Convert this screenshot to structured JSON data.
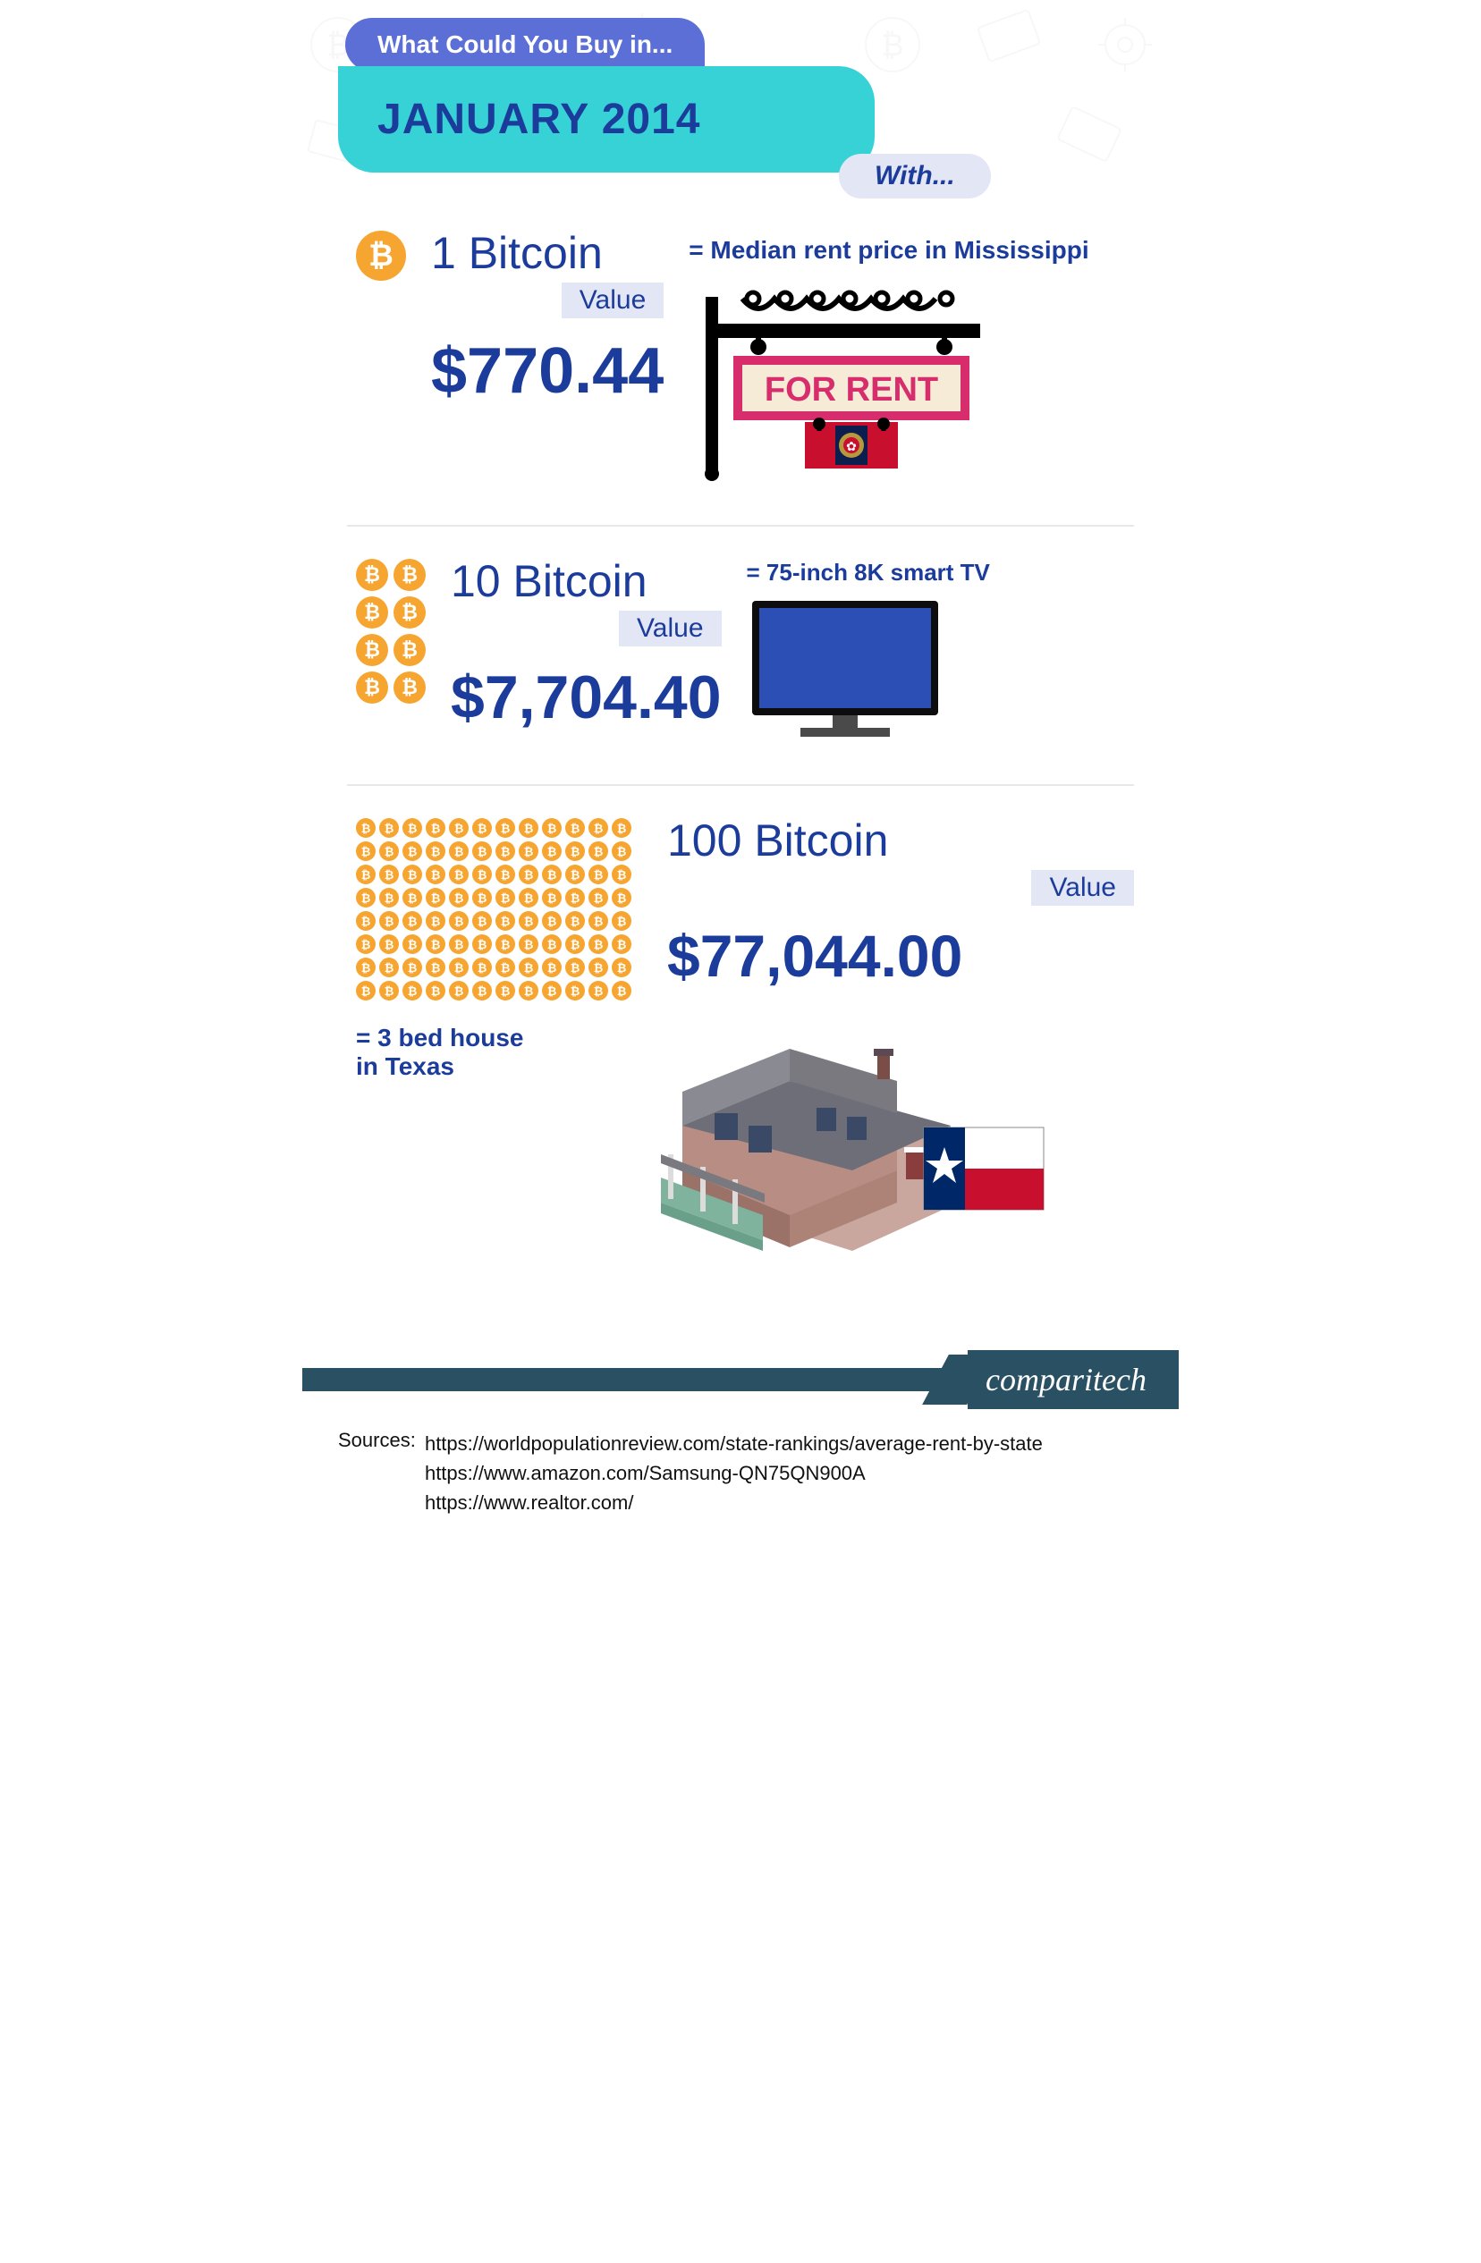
{
  "header": {
    "pill": "What Could You Buy in...",
    "date": "JANUARY 2014",
    "with": "With..."
  },
  "colors": {
    "brand_blue": "#1c3c9c",
    "pill_bg": "#5c6fd6",
    "date_bg": "#37d2d6",
    "light_bg": "#e3e6f4",
    "coin": "#f7a531",
    "footer": "#2a5163",
    "sign_pink": "#d72d6c",
    "sign_cream": "#f6ebd7",
    "tv_body": "#2b4fb5",
    "tv_frame": "#0d0d0d",
    "tv_stand": "#4a4a4a",
    "texas_red": "#c8102e",
    "texas_blue": "#002868"
  },
  "sections": [
    {
      "coin_count": 1,
      "amount_label": "1 Bitcoin",
      "value_label": "Value",
      "price": "$770.44",
      "equals": "= Median rent price in Mississippi",
      "sign_text": "FOR RENT"
    },
    {
      "coin_count": 8,
      "amount_label": "10 Bitcoin",
      "value_label": "Value",
      "price": "$7,704.40",
      "equals": "= 75-inch 8K smart TV"
    },
    {
      "coin_count": 96,
      "amount_label": "100 Bitcoin",
      "value_label": "Value",
      "price": "$77,044.00",
      "equals": "= 3 bed house\nin Texas"
    }
  ],
  "footer_logo": "comparitech",
  "sources_label": "Sources:",
  "sources": [
    "https://worldpopulationreview.com/state-rankings/average-rent-by-state",
    "https://www.amazon.com/Samsung-QN75QN900A",
    "https://www.realtor.com/"
  ]
}
